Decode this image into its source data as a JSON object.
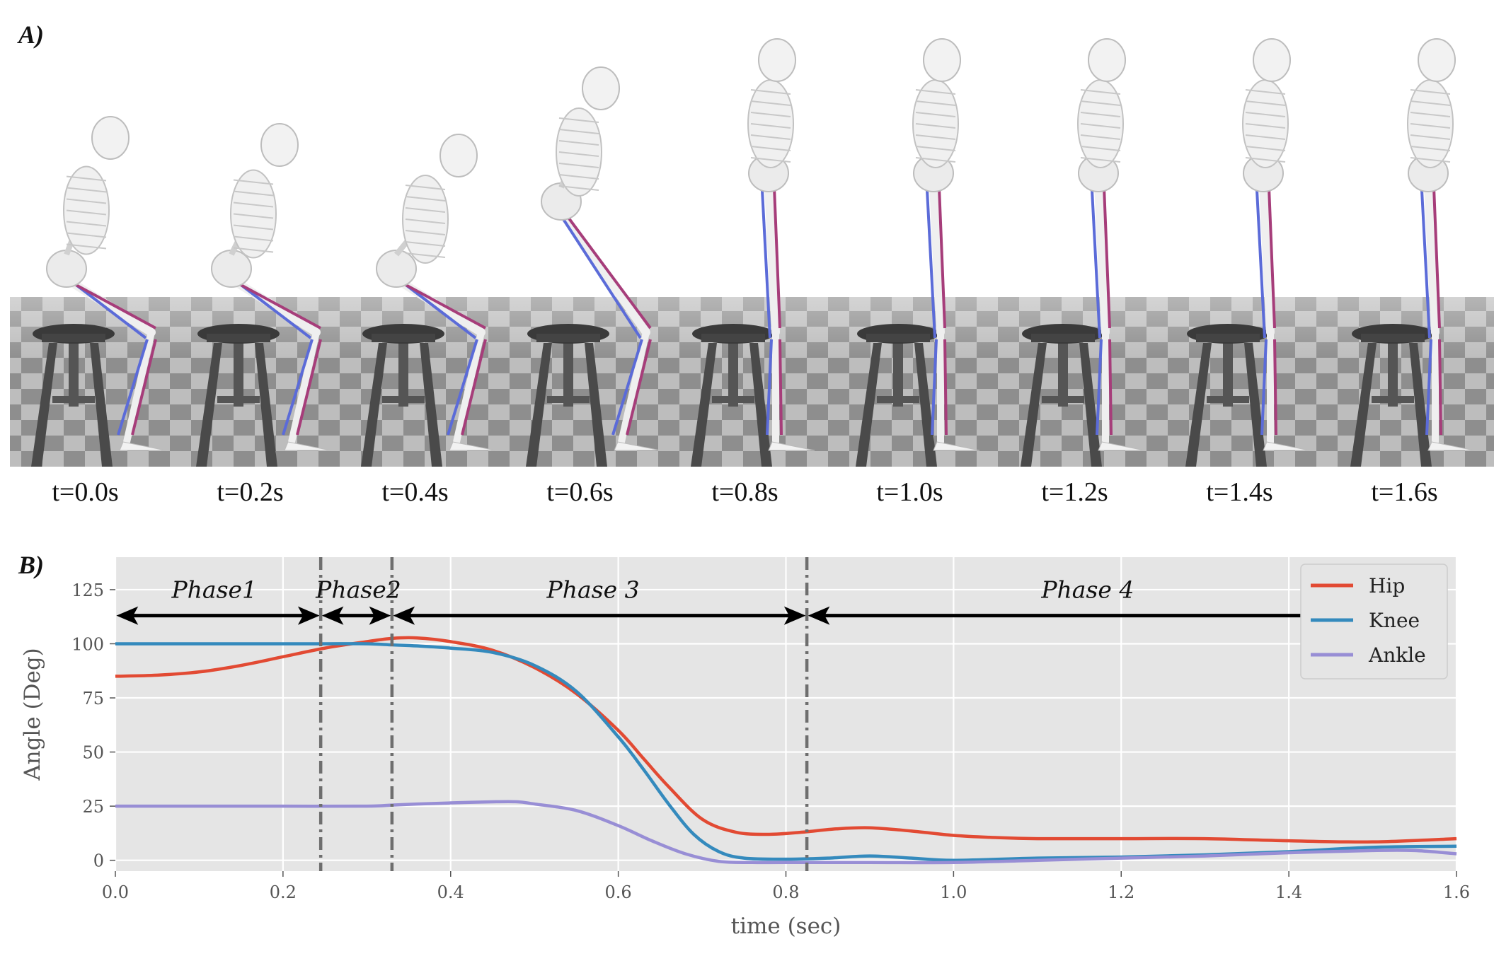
{
  "panel_a": {
    "label": "A)",
    "frames": [
      {
        "time_label": "t=0.0s"
      },
      {
        "time_label": "t=0.2s"
      },
      {
        "time_label": "t=0.4s"
      },
      {
        "time_label": "t=0.6s"
      },
      {
        "time_label": "t=0.8s"
      },
      {
        "time_label": "t=1.0s"
      },
      {
        "time_label": "t=1.2s"
      },
      {
        "time_label": "t=1.4s"
      },
      {
        "time_label": "t=1.6s"
      }
    ]
  },
  "panel_b": {
    "label": "B)"
  },
  "chart_data": {
    "type": "line",
    "title": "",
    "xlabel": "time (sec)",
    "ylabel": "Angle (Deg)",
    "xlim": [
      0.0,
      1.6
    ],
    "ylim": [
      -5,
      140
    ],
    "xticks": [
      "0.0",
      "0.2",
      "0.4",
      "0.6",
      "0.8",
      "1.0",
      "1.2",
      "1.4",
      "1.6"
    ],
    "yticks": [
      "0",
      "25",
      "50",
      "75",
      "100",
      "125"
    ],
    "grid": true,
    "legend_position": "top-right",
    "background": "#e5e5e5",
    "series": [
      {
        "name": "Hip",
        "color": "#e24a33",
        "x": [
          0.0,
          0.05,
          0.1,
          0.15,
          0.2,
          0.25,
          0.3,
          0.33,
          0.36,
          0.4,
          0.45,
          0.5,
          0.55,
          0.6,
          0.63,
          0.66,
          0.7,
          0.74,
          0.78,
          0.82,
          0.86,
          0.9,
          0.95,
          1.0,
          1.05,
          1.1,
          1.2,
          1.3,
          1.4,
          1.5,
          1.6
        ],
        "y": [
          85,
          85.5,
          87,
          90,
          94,
          98,
          101,
          102.5,
          102.7,
          101,
          97,
          89,
          77,
          60,
          47,
          34,
          19,
          13,
          12,
          13,
          14.5,
          15,
          13.5,
          11.5,
          10.5,
          10,
          10,
          10,
          9,
          8.5,
          10
        ]
      },
      {
        "name": "Knee",
        "color": "#348abd",
        "x": [
          0.0,
          0.1,
          0.2,
          0.25,
          0.3,
          0.33,
          0.36,
          0.4,
          0.45,
          0.5,
          0.55,
          0.6,
          0.63,
          0.66,
          0.69,
          0.72,
          0.75,
          0.8,
          0.85,
          0.9,
          0.95,
          1.0,
          1.1,
          1.2,
          1.3,
          1.4,
          1.5,
          1.6
        ],
        "y": [
          100,
          100,
          100,
          100,
          100,
          99.5,
          99,
          98,
          96,
          90,
          78,
          57,
          42,
          26,
          12,
          4,
          1,
          0.5,
          1,
          2,
          1,
          0,
          1,
          1.5,
          2.5,
          4,
          6,
          6.5
        ]
      },
      {
        "name": "Ankle",
        "color": "#988ed5",
        "x": [
          0.0,
          0.1,
          0.2,
          0.3,
          0.33,
          0.36,
          0.4,
          0.45,
          0.48,
          0.5,
          0.55,
          0.6,
          0.64,
          0.68,
          0.72,
          0.76,
          0.8,
          0.9,
          1.0,
          1.1,
          1.2,
          1.3,
          1.4,
          1.5,
          1.55,
          1.6
        ],
        "y": [
          25,
          25,
          25,
          25,
          25.5,
          26,
          26.5,
          27,
          27,
          26,
          23,
          16,
          9,
          3,
          -0.5,
          -1,
          -1,
          -1,
          -1,
          0,
          1,
          2,
          3.5,
          4.5,
          4.5,
          3
        ]
      }
    ],
    "vlines": [
      0.245,
      0.33,
      0.825
    ],
    "phases": [
      {
        "label": "Phase1",
        "start": 0.0,
        "end": 0.245
      },
      {
        "label": "Phase2",
        "start": 0.245,
        "end": 0.33
      },
      {
        "label": "Phase 3",
        "start": 0.33,
        "end": 0.825
      },
      {
        "label": "Phase 4",
        "start": 0.825,
        "end": 1.6
      }
    ],
    "phase_arrow_y": 113
  }
}
